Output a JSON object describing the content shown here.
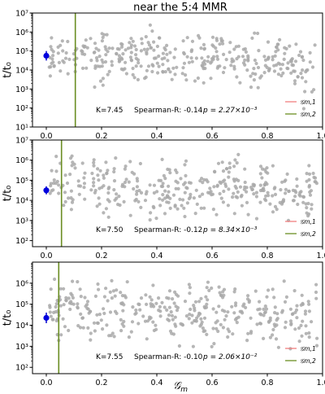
{
  "figure": {
    "title": "near the 5:4 MMR",
    "xlabel": "𝒢",
    "xlabel_sub": "m"
  },
  "chart_data": [
    {
      "type": "scatter",
      "xlabel": "",
      "ylabel": "t/t₀",
      "xlim": [
        -0.05,
        1.0
      ],
      "ylog": true,
      "ylim_exp": [
        1,
        7
      ],
      "xticks": [
        "0.0",
        "0.2",
        "0.4",
        "0.6",
        "0.8",
        "1.0"
      ],
      "yticks": [
        "10¹",
        "10²",
        "10³",
        "10⁴",
        "10⁵",
        "10⁶",
        "10⁷"
      ],
      "vline_x": 0.105,
      "highlight": {
        "x": 0.0,
        "y_exp": 4.75,
        "err_lo": 4.5,
        "err_hi": 5.0
      },
      "annotation": {
        "K": "K=7.45",
        "spearman": "Spearman-R: -0.14",
        "p": "p = 2.27×10⁻³"
      },
      "legend": [
        "𝒢m,1",
        "𝒢m,2"
      ],
      "legend_colors": [
        "#f08080",
        "#6b8e23"
      ],
      "scatter_color": "#a9a9a9",
      "grid": false
    },
    {
      "type": "scatter",
      "xlabel": "",
      "ylabel": "t/t₀",
      "xlim": [
        -0.05,
        1.0
      ],
      "ylog": true,
      "ylim_exp": [
        1.7,
        7
      ],
      "xticks": [
        "0.0",
        "0.2",
        "0.4",
        "0.6",
        "0.8",
        "1.0"
      ],
      "yticks": [
        "10²",
        "10³",
        "10⁴",
        "10⁵",
        "10⁶",
        "10⁷"
      ],
      "vline_x": 0.055,
      "highlight": {
        "x": 0.0,
        "y_exp": 4.5,
        "err_lo": 4.3,
        "err_hi": 4.7
      },
      "annotation": {
        "K": "K=7.50",
        "spearman": "Spearman-R: -0.12",
        "p": "p = 8.34×10⁻³"
      },
      "legend": [
        "𝒢m,1",
        "𝒢m,2"
      ],
      "legend_colors": [
        "#f08080",
        "#6b8e23"
      ],
      "scatter_color": "#a9a9a9",
      "grid": false
    },
    {
      "type": "scatter",
      "xlabel": "",
      "ylabel": "t/t₀",
      "xlim": [
        -0.05,
        1.0
      ],
      "ylog": true,
      "ylim_exp": [
        1.7,
        7
      ],
      "xticks": [
        "0.0",
        "0.2",
        "0.4",
        "0.6",
        "0.8",
        "1.0"
      ],
      "yticks": [
        "10²",
        "10³",
        "10⁴",
        "10⁵",
        "10⁶"
      ],
      "vline_x": 0.045,
      "highlight": {
        "x": 0.0,
        "y_exp": 4.35,
        "err_lo": 4.1,
        "err_hi": 4.6
      },
      "annotation": {
        "K": "K=7.55",
        "spearman": "Spearman-R: -0.10",
        "p": "p = 2.06×10⁻²"
      },
      "legend": [
        "𝒢m,1",
        "𝒢m,2"
      ],
      "legend_colors": [
        "#f08080",
        "#6b8e23"
      ],
      "scatter_color": "#a9a9a9",
      "grid": false
    }
  ]
}
